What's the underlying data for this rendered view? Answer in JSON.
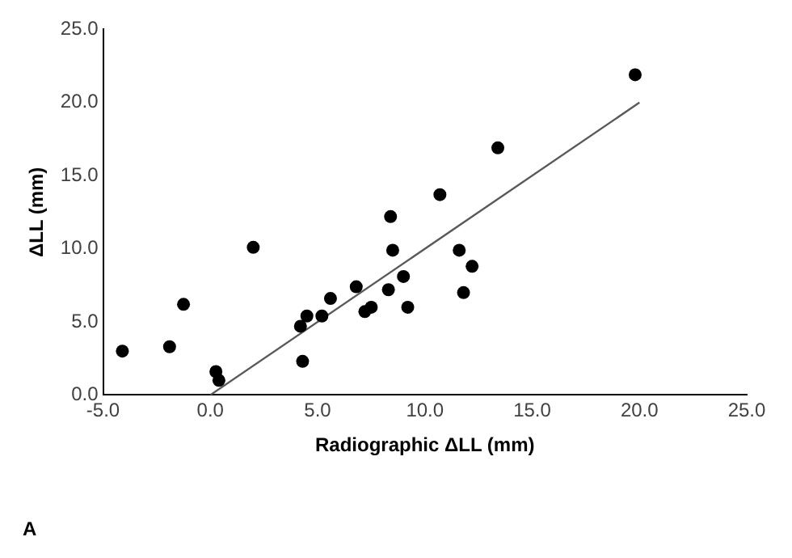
{
  "chart_data": {
    "type": "scatter",
    "xlabel": "Radiographic ΔLL (mm)",
    "ylabel": "ΔLL (mm)",
    "annotations": [
      "A"
    ],
    "xlim": [
      -5,
      25
    ],
    "ylim": [
      0,
      25
    ],
    "xticks": [
      {
        "value": -5,
        "label": "-5.0"
      },
      {
        "value": 0,
        "label": "0.0"
      },
      {
        "value": 5,
        "label": "5.0"
      },
      {
        "value": 10,
        "label": "10.0"
      },
      {
        "value": 15,
        "label": "15.0"
      },
      {
        "value": 20,
        "label": "20.0"
      },
      {
        "value": 25,
        "label": "25.0"
      }
    ],
    "yticks": [
      {
        "value": 0,
        "label": "0.0"
      },
      {
        "value": 5,
        "label": "5.0"
      },
      {
        "value": 10,
        "label": "10.0"
      },
      {
        "value": 15,
        "label": "15.0"
      },
      {
        "value": 20,
        "label": "20.0"
      },
      {
        "value": 25,
        "label": "25.0"
      }
    ],
    "grid": false,
    "legend": false,
    "marker": "circle",
    "series": [
      {
        "color": "#000000",
        "x": [
          -4.1,
          -1.9,
          -1.25,
          0.26,
          0.4,
          2.0,
          4.2,
          4.3,
          4.5,
          5.2,
          5.6,
          6.8,
          7.2,
          7.5,
          8.3,
          8.4,
          8.5,
          9.0,
          9.2,
          10.7,
          11.6,
          11.8,
          12.2,
          13.4,
          19.8
        ],
        "values": [
          3.0,
          3.3,
          6.2,
          1.6,
          1.0,
          10.1,
          4.7,
          2.3,
          5.4,
          5.4,
          6.6,
          7.4,
          5.7,
          6.0,
          7.2,
          12.2,
          9.9,
          8.1,
          6.0,
          13.7,
          9.9,
          7.0,
          8.8,
          16.9,
          21.9
        ]
      },
      {
        "type": "line",
        "color": "#595959",
        "marker": "none",
        "line_style": "solid",
        "x": [
          0,
          20
        ],
        "values": [
          0,
          20
        ]
      }
    ]
  }
}
